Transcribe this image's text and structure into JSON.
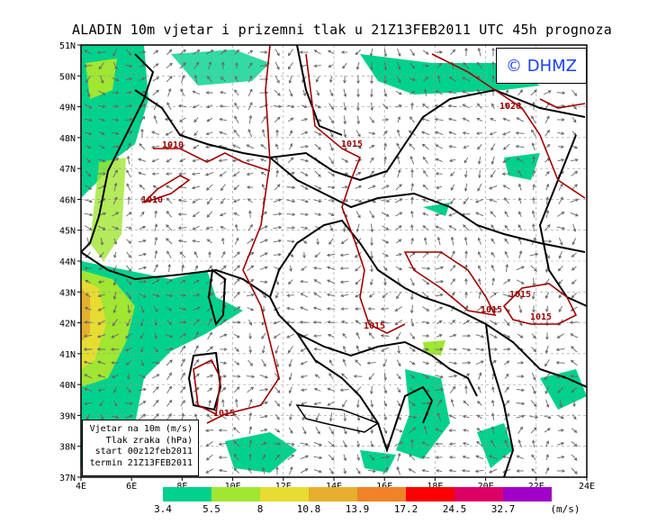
{
  "title": "ALADIN 10m vjetar i prizemni tlak u 21Z13FEB2011 UTC 45h prognoza",
  "copyright": "© DHMZ",
  "legend": {
    "lines": [
      "Vjetar na 10m (m/s)",
      "Tlak zraka (hPa)",
      "start 00z12feb2011",
      "termin 21Z13FEB2011"
    ]
  },
  "axes": {
    "lat_labels": [
      "51N",
      "50N",
      "49N",
      "48N",
      "47N",
      "46N",
      "45N",
      "44N",
      "43N",
      "42N",
      "41N",
      "40N",
      "39N",
      "38N",
      "37N"
    ],
    "lon_labels": [
      "4E",
      "6E",
      "8E",
      "10E",
      "12E",
      "14E",
      "16E",
      "18E",
      "20E",
      "22E",
      "24E"
    ],
    "lat_range": [
      37,
      51
    ],
    "lon_range": [
      4,
      24
    ]
  },
  "colorbar": {
    "labels": [
      "3.4",
      "5.5",
      "8",
      "10.8",
      "13.9",
      "17.2",
      "24.5",
      "32.7"
    ],
    "unit": "(m/s)",
    "colors": [
      "#00d18c",
      "#a0e632",
      "#e6dc32",
      "#e6af2d",
      "#f08228",
      "#fa0000",
      "#dc0064",
      "#a000c8"
    ]
  },
  "isobars": [
    {
      "label": "1010"
    },
    {
      "label": "1010"
    },
    {
      "label": "1015"
    },
    {
      "label": "1020"
    },
    {
      "label": "1015"
    },
    {
      "label": "1015"
    },
    {
      "label": "1015"
    },
    {
      "label": "1015"
    },
    {
      "label": "1015"
    }
  ],
  "colors": {
    "isobar": "#a00000",
    "coast": "#000000",
    "arrow": "#666666"
  }
}
